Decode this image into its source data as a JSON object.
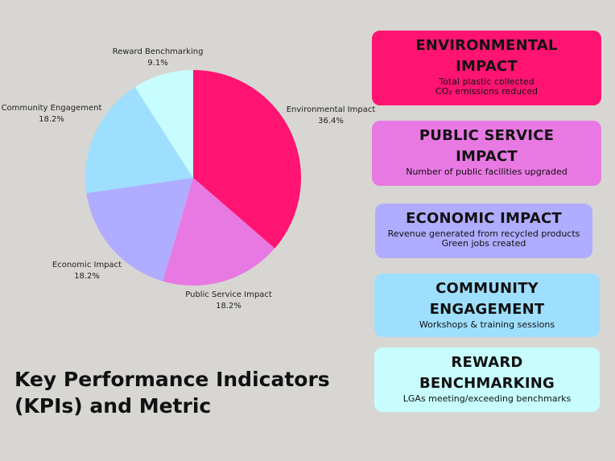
{
  "title": {
    "line1": "Key Performance Indicators",
    "line2": "(KPIs) and Metric"
  },
  "chart_data": {
    "type": "pie",
    "slices": [
      {
        "label": "Environmental Impact",
        "value": 36.4,
        "display": "36.4%",
        "color": "#ff1472"
      },
      {
        "label": "Public Service Impact",
        "value": 18.2,
        "display": "18.2%",
        "color": "#e879e2"
      },
      {
        "label": "Economic Impact",
        "value": 18.2,
        "display": "18.2%",
        "color": "#b0acff"
      },
      {
        "label": "Community Engagement",
        "value": 18.2,
        "display": "18.2%",
        "color": "#9edfff"
      },
      {
        "label": "Reward Benchmarking",
        "value": 9.1,
        "display": "9.1%",
        "color": "#c7fdff"
      }
    ]
  },
  "cards": [
    {
      "title_lines": [
        "ENVIRONMENTAL",
        "IMPACT"
      ],
      "metrics": [
        "Total plastic collected",
        "CO₂ emissions reduced"
      ],
      "color": "#ff1472"
    },
    {
      "title_lines": [
        "PUBLIC SERVICE",
        "IMPACT"
      ],
      "metrics": [
        "Number of public facilities upgraded"
      ],
      "color": "#e879e2"
    },
    {
      "title_lines": [
        "ECONOMIC IMPACT"
      ],
      "metrics": [
        "Revenue generated from recycled products",
        "Green jobs created"
      ],
      "color": "#b0acff"
    },
    {
      "title_lines": [
        "COMMUNITY",
        "ENGAGEMENT"
      ],
      "metrics": [
        "Workshops & training sessions"
      ],
      "color": "#9edfff"
    },
    {
      "title_lines": [
        "REWARD",
        "BENCHMARKING"
      ],
      "metrics": [
        "LGAs meeting/exceeding benchmarks"
      ],
      "color": "#c7fdff"
    }
  ]
}
